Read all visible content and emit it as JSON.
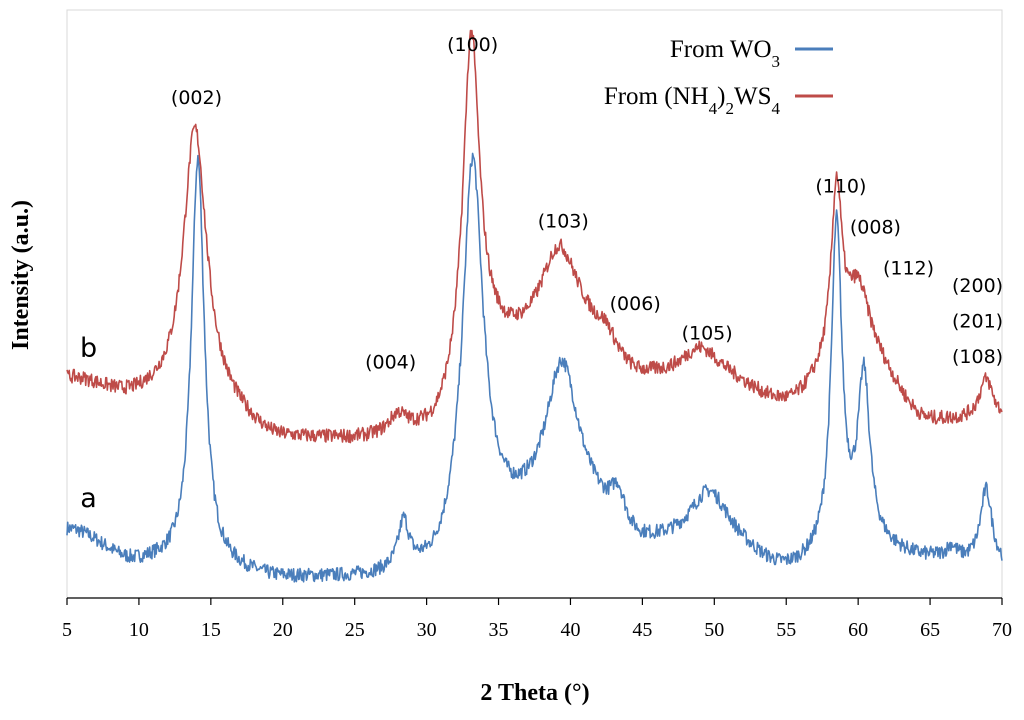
{
  "chart_data": {
    "type": "line",
    "title": "",
    "xlabel": "2 Theta (°)",
    "ylabel": "Intensity (a.u.)",
    "xlim": [
      5,
      70
    ],
    "ylim": [
      0,
      100
    ],
    "x_ticks": [
      5,
      10,
      15,
      20,
      25,
      30,
      35,
      40,
      45,
      50,
      55,
      60,
      65,
      70
    ],
    "grid": false,
    "legend_position": "top-right",
    "colors": {
      "wo3": "#4A7EBB",
      "nh4": "#BE4B48"
    },
    "series": [
      {
        "name": "From WO3",
        "legend_main": "From WO",
        "legend_sub": "3",
        "curve_label": "a",
        "color": "#4A7EBB",
        "baseline": [
          [
            5,
            11.5
          ],
          [
            10,
            5.8
          ],
          [
            15,
            4.5
          ],
          [
            20,
            3.0
          ],
          [
            25,
            3.0
          ],
          [
            30,
            3.5
          ],
          [
            35,
            12.5
          ],
          [
            40,
            16
          ],
          [
            45,
            8.5
          ],
          [
            50,
            9.5
          ],
          [
            55,
            4.5
          ],
          [
            60,
            8.5
          ],
          [
            65,
            6.5
          ],
          [
            70,
            5
          ]
        ],
        "peaks": [
          {
            "center": 14.1,
            "height": 70,
            "width": 0.55
          },
          {
            "center": 28.4,
            "height": 8,
            "width": 0.45
          },
          {
            "center": 33.2,
            "height": 64,
            "width": 0.85
          },
          {
            "center": 39.4,
            "height": 23,
            "width": 1.3
          },
          {
            "center": 43.3,
            "height": 6,
            "width": 0.6
          },
          {
            "center": 49.6,
            "height": 8,
            "width": 1.5
          },
          {
            "center": 58.5,
            "height": 55,
            "width": 0.45
          },
          {
            "center": 60.4,
            "height": 28,
            "width": 0.5
          },
          {
            "center": 66.5,
            "height": 2,
            "width": 0.4
          },
          {
            "center": 68.9,
            "height": 13,
            "width": 0.5
          }
        ]
      },
      {
        "name": "From (NH4)2WS4",
        "legend_main": "From (NH",
        "legend_sub": "4",
        "legend_mid": ")",
        "legend_sub2": "2",
        "legend_tail": "WS",
        "legend_sub3": "4",
        "curve_label": "b",
        "color": "#BE4B48",
        "baseline": [
          [
            5,
            37
          ],
          [
            10,
            33.5
          ],
          [
            15,
            31.5
          ],
          [
            20,
            26.5
          ],
          [
            25,
            26.5
          ],
          [
            30,
            27.5
          ],
          [
            35,
            42
          ],
          [
            40,
            45
          ],
          [
            45,
            37
          ],
          [
            50,
            37
          ],
          [
            55,
            33
          ],
          [
            60,
            42
          ],
          [
            65,
            30
          ],
          [
            70,
            30
          ]
        ],
        "peaks": [
          {
            "center": 13.9,
            "height": 48,
            "width": 1.0
          },
          {
            "center": 28.0,
            "height": 3,
            "width": 0.7
          },
          {
            "center": 33.1,
            "height": 58,
            "width": 0.7
          },
          {
            "center": 39.2,
            "height": 14,
            "width": 1.5
          },
          {
            "center": 42.5,
            "height": 3,
            "width": 0.8
          },
          {
            "center": 49.0,
            "height": 5,
            "width": 1.5
          },
          {
            "center": 58.5,
            "height": 29,
            "width": 0.45
          },
          {
            "center": 60.0,
            "height": 10,
            "width": 0.9
          },
          {
            "center": 68.9,
            "height": 7,
            "width": 0.6
          }
        ]
      }
    ],
    "annotations": [
      {
        "text": "(002)",
        "x": 14.0,
        "y": 84,
        "anchor": "middle"
      },
      {
        "text": "(100)",
        "x": 33.2,
        "y": 93,
        "anchor": "middle"
      },
      {
        "text": "(103)",
        "x": 39.5,
        "y": 63,
        "anchor": "middle"
      },
      {
        "text": "(006)",
        "x": 44.5,
        "y": 49,
        "anchor": "middle"
      },
      {
        "text": "(004)",
        "x": 27.5,
        "y": 39,
        "anchor": "middle"
      },
      {
        "text": "(105)",
        "x": 49.5,
        "y": 44,
        "anchor": "middle"
      },
      {
        "text": "(110)",
        "x": 58.8,
        "y": 69,
        "anchor": "middle"
      },
      {
        "text": "(008)",
        "x": 61.2,
        "y": 62,
        "anchor": "middle"
      },
      {
        "text": "(112)",
        "x": 63.5,
        "y": 55,
        "anchor": "middle"
      },
      {
        "text": "(200)",
        "x": 68.3,
        "y": 52,
        "anchor": "middle"
      },
      {
        "text": "(201)",
        "x": 68.3,
        "y": 46,
        "anchor": "middle"
      },
      {
        "text": "(108)",
        "x": 68.3,
        "y": 40,
        "anchor": "middle"
      }
    ]
  }
}
